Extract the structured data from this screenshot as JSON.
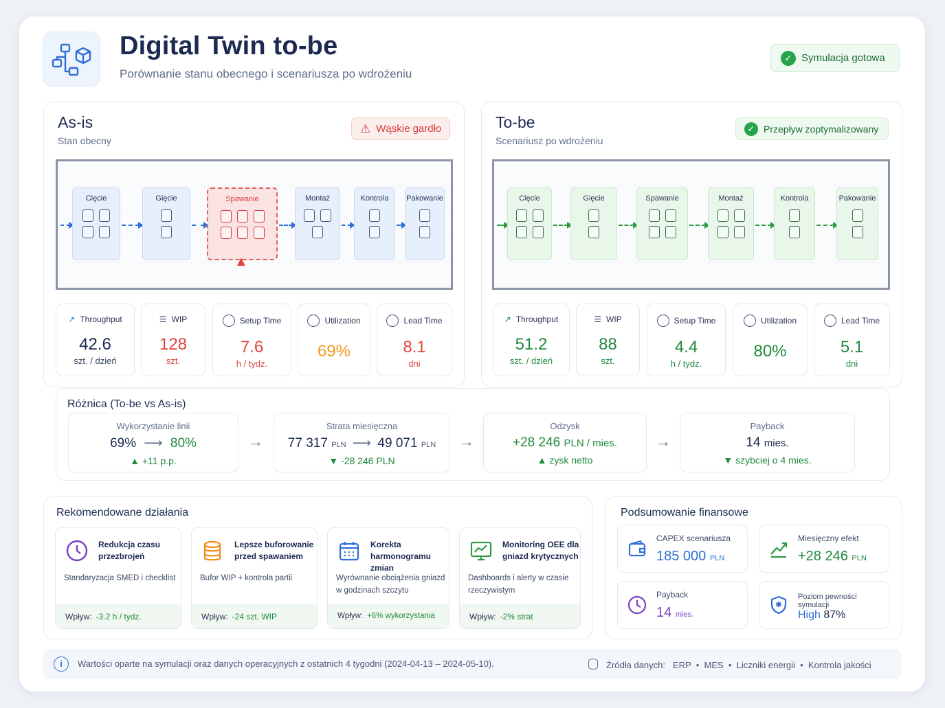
{
  "header": {
    "title": "Digital Twin to-be",
    "subtitle": "Porównanie stanu obecnego i scenariusza po wdrożeniu",
    "status": "Symulacja gotowa"
  },
  "asis": {
    "title": "As-is",
    "subtitle": "Stan obecny",
    "badge": "Wąskie gardło",
    "stations": [
      "Cięcie",
      "Gięcie",
      "Spawanie",
      "Montaż",
      "Kontrola",
      "Pakowanie"
    ],
    "kpis": [
      {
        "label": "Throughput",
        "value": "42.6",
        "unit": "szt. / dzień",
        "icon": "trend-icon",
        "color": "#1c2a52"
      },
      {
        "label": "WIP",
        "value": "128",
        "unit": "szt.",
        "icon": "layers-icon",
        "color": "#e0443d"
      },
      {
        "label": "Setup Time",
        "value": "7.6",
        "unit": "h / tydz.",
        "icon": "clock-icon",
        "color": "#e0443d"
      },
      {
        "label": "Utilization",
        "value": "69%",
        "unit": "",
        "icon": "gauge-icon",
        "color": "#f29b1d"
      },
      {
        "label": "Lead Time",
        "value": "8.1",
        "unit": "dni",
        "icon": "clock-icon",
        "color": "#e0443d"
      }
    ]
  },
  "tobe": {
    "title": "To-be",
    "subtitle": "Scenariusz po wdrożeniu",
    "badge": "Przepływ zoptymalizowany",
    "stations": [
      "Cięcie",
      "Gięcie",
      "Spawanie",
      "Montaż",
      "Kontrola",
      "Pakowanie"
    ],
    "kpis": [
      {
        "label": "Throughput",
        "value": "51.2",
        "unit": "szt. / dzień",
        "icon": "trend-icon",
        "color": "#1f8a3c"
      },
      {
        "label": "WIP",
        "value": "88",
        "unit": "szt.",
        "icon": "layers-icon",
        "color": "#1f8a3c"
      },
      {
        "label": "Setup Time",
        "value": "4.4",
        "unit": "h / tydz.",
        "icon": "clock-icon",
        "color": "#1f8a3c"
      },
      {
        "label": "Utilization",
        "value": "80%",
        "unit": "",
        "icon": "gauge-icon",
        "color": "#1f8a3c"
      },
      {
        "label": "Lead Time",
        "value": "5.1",
        "unit": "dni",
        "icon": "clock-icon",
        "color": "#1f8a3c"
      }
    ]
  },
  "diff": {
    "title": "Różnica (To-be vs As-is)",
    "util_label": "Wykorzystanie linii",
    "util_from": "69%",
    "util_to": "80%",
    "util_delta": "▲ +11 p.p.",
    "loss_label": "Strata miesięczna",
    "loss_from": "77 317",
    "loss_to": "49 071",
    "loss_unit": "PLN",
    "loss_delta": "▼ -28 246 PLN",
    "rec_label": "Odzysk",
    "rec_value": "+28 246",
    "rec_unit": "PLN / mies.",
    "rec_delta": "▲ zysk netto",
    "pay_label": "Payback",
    "pay_value": "14",
    "pay_unit": "mies.",
    "pay_delta": "▼ szybciej o 4 mies."
  },
  "recommendations": {
    "title": "Rekomendowane działania",
    "impact_label": "Wpływ:",
    "items": [
      {
        "title": "Redukcja czasu przezbrojeń",
        "desc": "Standaryzacja SMED i checklist",
        "impact": "-3.2 h / tydz.",
        "icon": "clock-icon"
      },
      {
        "title": "Lepsze buforowanie przed spawaniem",
        "desc": "Bufor WIP + kontrola partii",
        "impact": "-24 szt. WIP",
        "icon": "stack-icon"
      },
      {
        "title": "Korekta harmonogramu zmian",
        "desc": "Wyrównanie obciążenia gniazd w godzinach szczytu",
        "impact": "+6% wykorzystania",
        "icon": "calendar-icon"
      },
      {
        "title": "Monitoring OEE dla gniazd krytycznych",
        "desc": "Dashboards i alerty w czasie rzeczywistym",
        "impact": "-2% strat",
        "icon": "monitor-icon"
      }
    ]
  },
  "finance": {
    "title": "Podsumowanie finansowe",
    "capex_label": "CAPEX scenariusza",
    "capex_value": "185 000",
    "capex_unit": "PLN",
    "monthly_label": "Miesięczny efekt",
    "monthly_value": "+28 246",
    "monthly_unit": "PLN",
    "payback_label": "Payback",
    "payback_value": "14",
    "payback_unit": "mies.",
    "confidence_label": "Poziom pewności symulacji",
    "confidence_level": "High",
    "confidence_pct": "87%"
  },
  "footer": {
    "note": "Wartości oparte na symulacji oraz danych operacyjnych z ostatnich 4 tygodni (2024-04-13 – 2024-05-10).",
    "sources_label": "Źródła danych:",
    "sources": "ERP  •  MES  •  Liczniki energii  •  Kontrola jakości"
  }
}
